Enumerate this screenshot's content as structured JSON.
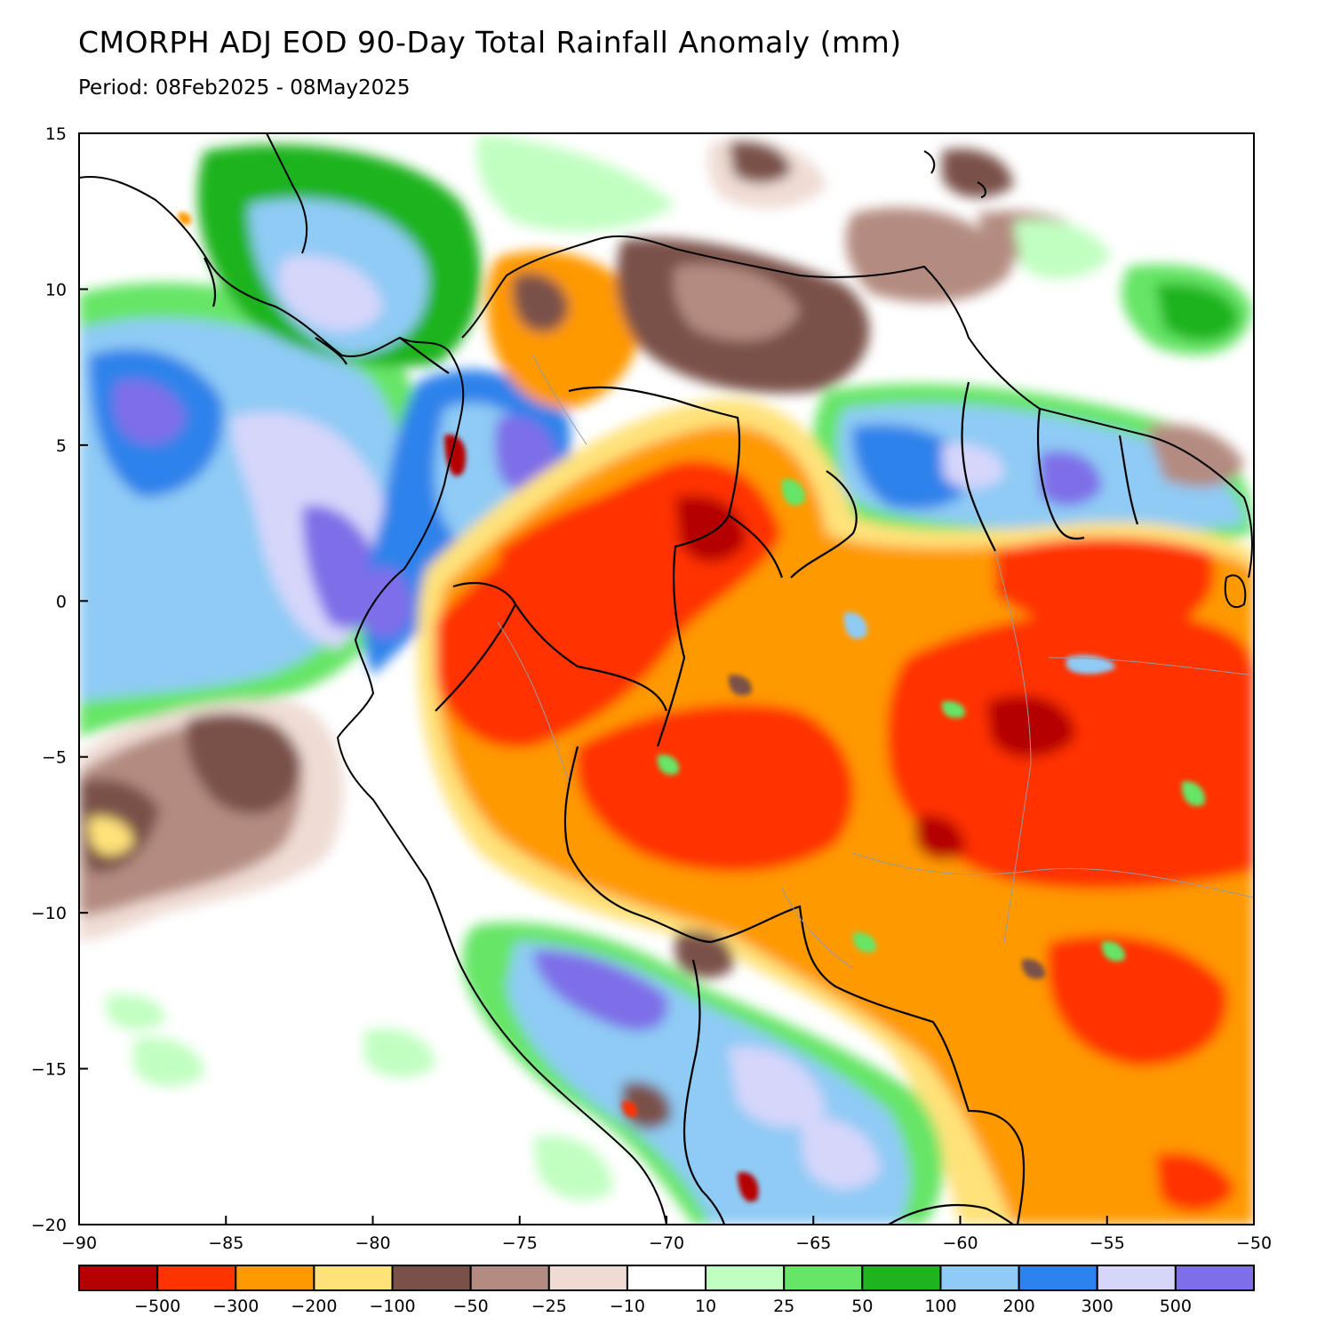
{
  "title": "CMORPH ADJ EOD 90-Day Total Rainfall Anomaly (mm)",
  "subtitle": "Period: 08Feb2025 - 08May2025",
  "map": {
    "lon_range": [
      -90,
      -50
    ],
    "lat_range": [
      -20,
      15
    ],
    "lon_ticks": [
      "−90",
      "−85",
      "−80",
      "−75",
      "−70",
      "−65",
      "−60",
      "−55",
      "−50"
    ],
    "lat_ticks": [
      "15",
      "10",
      "5",
      "0",
      "−5",
      "−10",
      "−15",
      "−20"
    ],
    "region": "Northern South America & Central America"
  },
  "colorbar": {
    "colors": [
      "#b50000",
      "#ff3300",
      "#ff9900",
      "#ffe27a",
      "#7a5148",
      "#b48b80",
      "#efdbd4",
      "#ffffff",
      "#c1ffc1",
      "#66e566",
      "#1fb31f",
      "#8fcbf5",
      "#2e82eb",
      "#d6d6fb",
      "#7e6ee8"
    ],
    "labels": [
      "−500",
      "−300",
      "−200",
      "−100",
      "−50",
      "−25",
      "−10",
      "10",
      "25",
      "50",
      "100",
      "200",
      "300",
      "500"
    ]
  }
}
